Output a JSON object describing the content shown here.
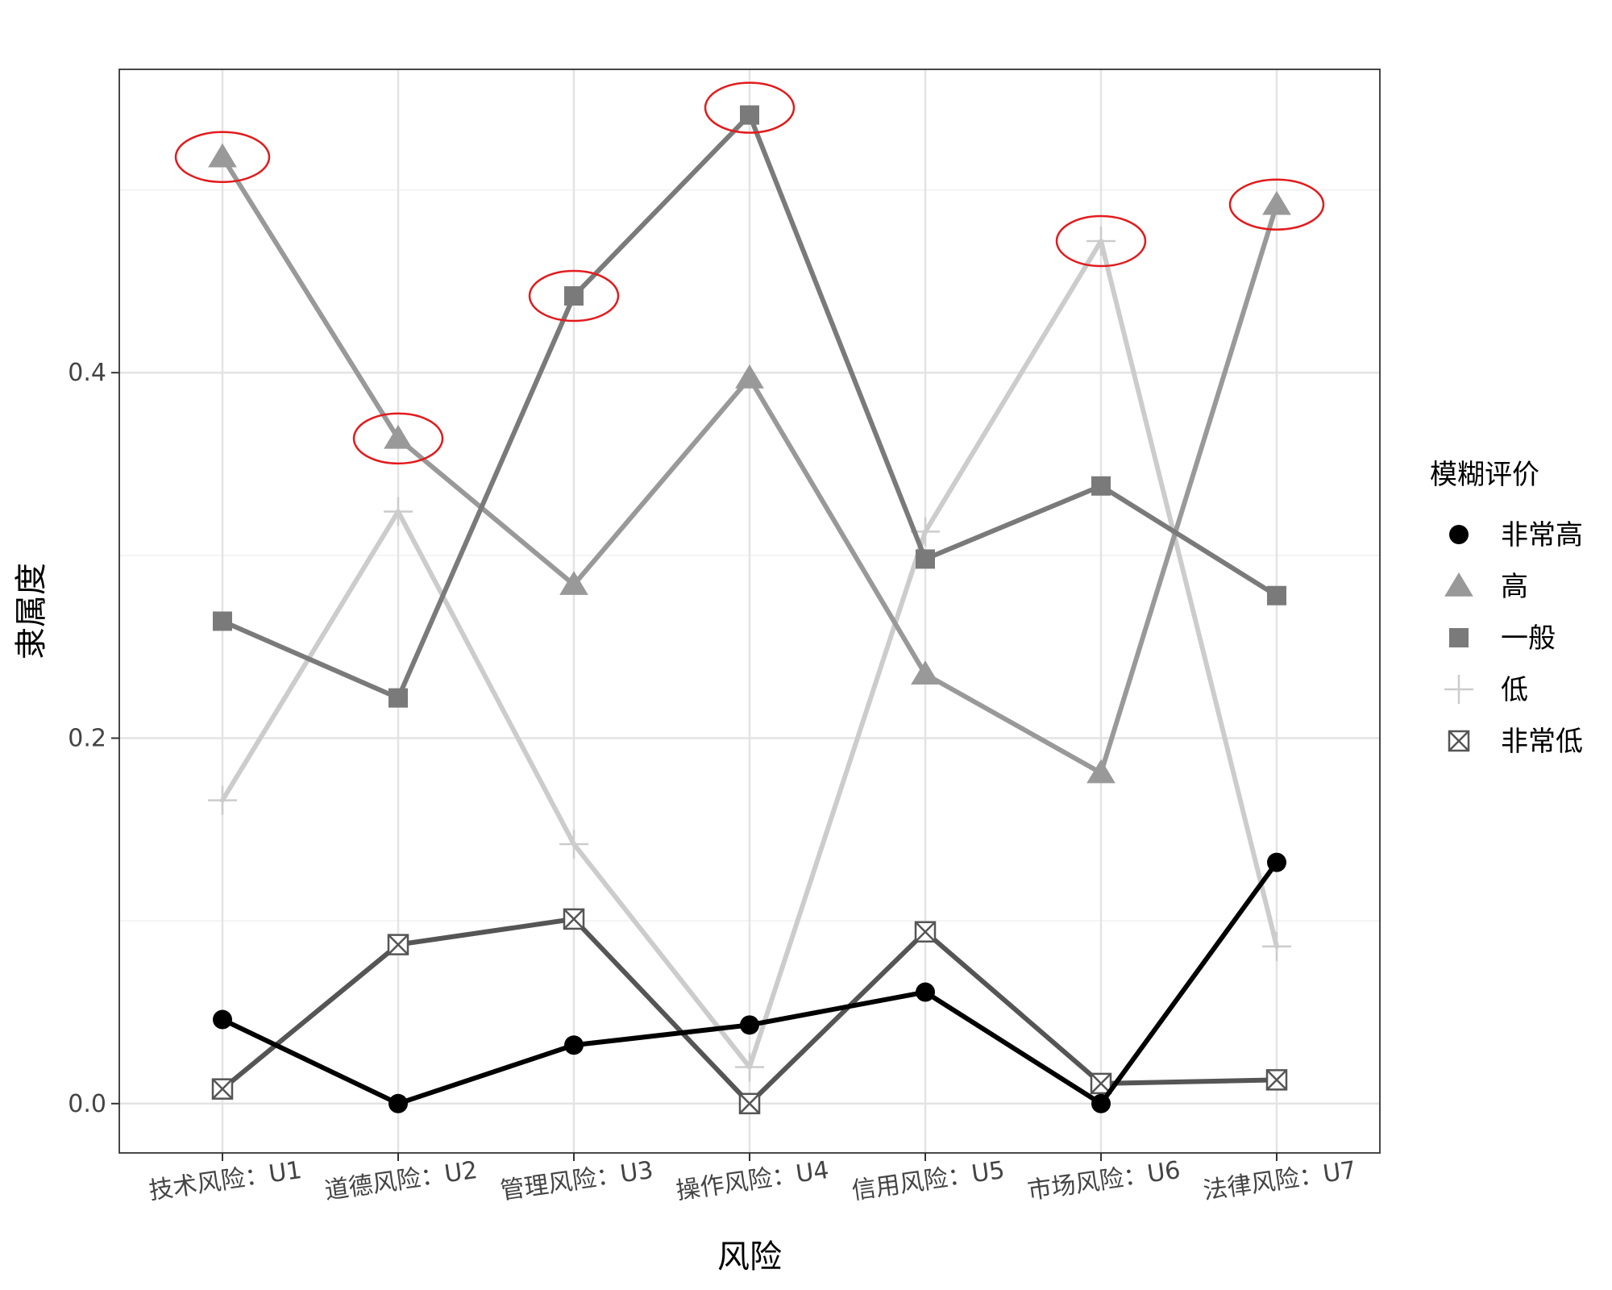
{
  "chart_data": {
    "type": "line",
    "xlabel": "风险",
    "ylabel": "隶属度",
    "categories": [
      "技术风险：U1",
      "道德风险：U2",
      "管理风险：U3",
      "操作风险：U4",
      "信用风险：U5",
      "市场风险：U6",
      "法律风险：U7"
    ],
    "ylim": [
      -0.027,
      0.566
    ],
    "yticks": [
      "0.0",
      "0.2",
      "0.4"
    ],
    "ytick_values": [
      0.0,
      0.2,
      0.4
    ],
    "grid": true,
    "legend": {
      "title": "模糊评价",
      "placement": "right"
    },
    "series": [
      {
        "name": "非常高",
        "marker": "circle",
        "color": "#000000",
        "values": [
          0.046,
          0.0,
          0.032,
          0.043,
          0.061,
          0.0,
          0.132
        ]
      },
      {
        "name": "高",
        "marker": "triangle",
        "color": "#999999",
        "values": [
          0.518,
          0.364,
          0.284,
          0.397,
          0.235,
          0.181,
          0.492
        ]
      },
      {
        "name": "一般",
        "marker": "square",
        "color": "#7a7a7a",
        "values": [
          0.264,
          0.222,
          0.442,
          0.541,
          0.298,
          0.338,
          0.278
        ]
      },
      {
        "name": "低",
        "marker": "plus",
        "color": "#cccccc",
        "values": [
          0.166,
          0.324,
          0.142,
          0.02,
          0.313,
          0.472,
          0.086
        ]
      },
      {
        "name": "非常低",
        "marker": "boxx",
        "color": "#555555",
        "values": [
          0.008,
          0.087,
          0.101,
          0.0,
          0.094,
          0.011,
          0.013
        ]
      }
    ],
    "annotations": [
      {
        "type": "ellipse",
        "color": "#e31a1c",
        "category_index": 0,
        "y": 0.518
      },
      {
        "type": "ellipse",
        "color": "#e31a1c",
        "category_index": 1,
        "y": 0.364
      },
      {
        "type": "ellipse",
        "color": "#e31a1c",
        "category_index": 2,
        "y": 0.442
      },
      {
        "type": "ellipse",
        "color": "#e31a1c",
        "category_index": 3,
        "y": 0.545
      },
      {
        "type": "ellipse",
        "color": "#e31a1c",
        "category_index": 5,
        "y": 0.472
      },
      {
        "type": "ellipse",
        "color": "#e31a1c",
        "category_index": 6,
        "y": 0.492
      }
    ]
  }
}
